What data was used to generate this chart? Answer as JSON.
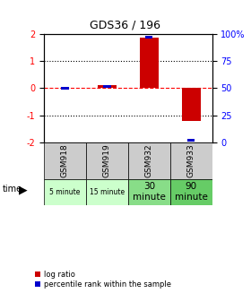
{
  "title": "GDS36 / 196",
  "samples": [
    "GSM918",
    "GSM919",
    "GSM932",
    "GSM933"
  ],
  "time_labels": [
    "5 minute",
    "15 minute",
    "30\nminute",
    "90\nminute"
  ],
  "time_bg_colors": [
    "#ccffcc",
    "#ccffcc",
    "#88dd88",
    "#66cc66"
  ],
  "time_font_sizes": [
    5.5,
    5.5,
    7.5,
    7.5
  ],
  "log_ratios": [
    0,
    0.1,
    1.85,
    -1.2
  ],
  "percentile_ranks": [
    50,
    52,
    97,
    2
  ],
  "bar_color": "#cc0000",
  "pct_color": "#0000cc",
  "ylim": [
    -2,
    2
  ],
  "yticks_left": [
    -2,
    -1,
    0,
    1,
    2
  ],
  "yticks_right": [
    0,
    25,
    50,
    75,
    100
  ],
  "bar_width": 0.45,
  "legend_red": "log ratio",
  "legend_blue": "percentile rank within the sample",
  "background_color": "#ffffff"
}
